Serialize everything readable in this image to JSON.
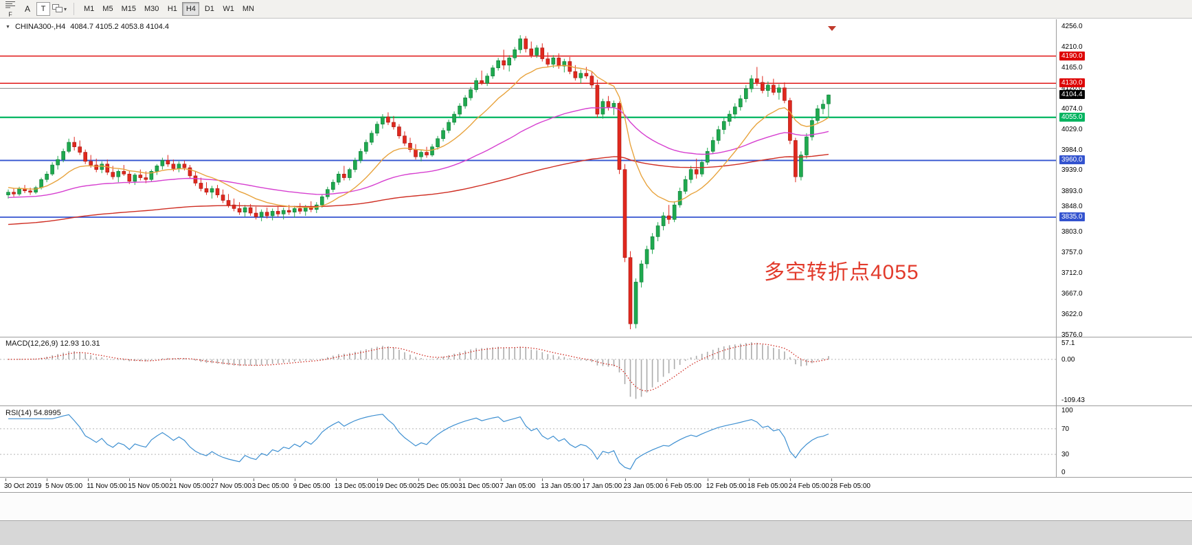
{
  "toolbar": {
    "f_badge": "F",
    "buttons": {
      "annotate": "A",
      "text": "T"
    },
    "timeframes": [
      "M1",
      "M5",
      "M15",
      "M30",
      "H1",
      "H4",
      "D1",
      "W1",
      "MN"
    ],
    "active_timeframe": "H4"
  },
  "chart": {
    "symbol": "CHINA300-,H4",
    "ohlc_text": "4084.7 4105.2 4053.8 4104.4",
    "annotation": {
      "text": "多空转折点4055",
      "color": "#e23b2c"
    },
    "colors": {
      "up": "#1fa94f",
      "up_stroke": "#0e7a36",
      "down": "#e0281e",
      "down_stroke": "#a31710"
    },
    "current_price": {
      "value": 4104.4,
      "label": "4104.4",
      "bg": "#000000",
      "fg": "#ffffff"
    }
  },
  "chart_data": {
    "type": "candlestick",
    "title": "CHINA300-,H4",
    "ohlc_display": {
      "open": 4084.7,
      "high": 4105.2,
      "low": 4053.8,
      "close": 4104.4
    },
    "x_labels": [
      "30 Oct 2019",
      "5 Nov 05:00",
      "11 Nov 05:00",
      "15 Nov 05:00",
      "21 Nov 05:00",
      "27 Nov 05:00",
      "3 Dec 05:00",
      "9 Dec 05:00",
      "13 Dec 05:00",
      "19 Dec 05:00",
      "25 Dec 05:00",
      "31 Dec 05:00",
      "7 Jan 05:00",
      "13 Jan 05:00",
      "17 Jan 05:00",
      "23 Jan 05:00",
      "6 Feb 05:00",
      "12 Feb 05:00",
      "18 Feb 05:00",
      "24 Feb 05:00",
      "28 Feb 05:00"
    ],
    "y_axis": {
      "min": 3576,
      "max": 4256,
      "ticks": [
        4256.0,
        4210.0,
        4165.0,
        4120.0,
        4074.0,
        4029.0,
        3984.0,
        3939.0,
        3893.0,
        3848.0,
        3803.0,
        3757.0,
        3712.0,
        3667.0,
        3622.0,
        3576.0
      ]
    },
    "levels": [
      {
        "value": 4190.0,
        "label": "4190.0",
        "color": "#dd0000",
        "width": 1.4,
        "badge": true
      },
      {
        "value": 4130.0,
        "label": "4130.0",
        "color": "#dd0000",
        "width": 1.4,
        "badge": true
      },
      {
        "value": 4119.0,
        "label": "",
        "color": "#8c8c8c",
        "width": 1,
        "badge": false
      },
      {
        "value": 4055.0,
        "label": "4055.0",
        "color": "#00b45f",
        "width": 2.2,
        "badge": true
      },
      {
        "value": 3960.0,
        "label": "3960.0",
        "color": "#3353cf",
        "width": 1.8,
        "badge": true
      },
      {
        "value": 3835.0,
        "label": "3835.0",
        "color": "#3353cf",
        "width": 1.8,
        "badge": true
      }
    ],
    "moving_averages": [
      {
        "name": "long-ma",
        "color": "#cf2d22"
      },
      {
        "name": "mid-ma",
        "color": "#d63fd0"
      },
      {
        "name": "fast-ma",
        "color": "#e8a33d"
      }
    ],
    "candles": [
      [
        3884,
        3896,
        3876,
        3890
      ],
      [
        3890,
        3898,
        3880,
        3886
      ],
      [
        3886,
        3902,
        3882,
        3898
      ],
      [
        3898,
        3906,
        3888,
        3893
      ],
      [
        3893,
        3900,
        3884,
        3890
      ],
      [
        3890,
        3904,
        3886,
        3900
      ],
      [
        3900,
        3922,
        3896,
        3918
      ],
      [
        3918,
        3936,
        3912,
        3930
      ],
      [
        3930,
        3956,
        3926,
        3950
      ],
      [
        3950,
        3970,
        3940,
        3962
      ],
      [
        3962,
        3986,
        3956,
        3980
      ],
      [
        3980,
        4008,
        3976,
        4000
      ],
      [
        4000,
        4012,
        3982,
        3990
      ],
      [
        3990,
        4004,
        3972,
        3978
      ],
      [
        3978,
        3984,
        3952,
        3958
      ],
      [
        3958,
        3972,
        3944,
        3950
      ],
      [
        3950,
        3964,
        3934,
        3940
      ],
      [
        3940,
        3958,
        3932,
        3952
      ],
      [
        3952,
        3962,
        3928,
        3934
      ],
      [
        3934,
        3948,
        3918,
        3924
      ],
      [
        3924,
        3940,
        3912,
        3936
      ],
      [
        3936,
        3950,
        3926,
        3930
      ],
      [
        3930,
        3938,
        3908,
        3914
      ],
      [
        3914,
        3932,
        3906,
        3928
      ],
      [
        3928,
        3940,
        3916,
        3922
      ],
      [
        3922,
        3936,
        3910,
        3918
      ],
      [
        3918,
        3940,
        3914,
        3936
      ],
      [
        3936,
        3952,
        3928,
        3948
      ],
      [
        3948,
        3966,
        3940,
        3960
      ],
      [
        3960,
        3972,
        3946,
        3952
      ],
      [
        3952,
        3962,
        3936,
        3942
      ],
      [
        3942,
        3958,
        3934,
        3952
      ],
      [
        3952,
        3960,
        3938,
        3944
      ],
      [
        3944,
        3950,
        3920,
        3926
      ],
      [
        3926,
        3936,
        3904,
        3910
      ],
      [
        3910,
        3922,
        3892,
        3898
      ],
      [
        3898,
        3912,
        3884,
        3890
      ],
      [
        3890,
        3904,
        3876,
        3898
      ],
      [
        3898,
        3906,
        3878,
        3884
      ],
      [
        3884,
        3896,
        3866,
        3872
      ],
      [
        3872,
        3886,
        3856,
        3862
      ],
      [
        3862,
        3876,
        3848,
        3854
      ],
      [
        3854,
        3868,
        3840,
        3846
      ],
      [
        3846,
        3862,
        3836,
        3856
      ],
      [
        3856,
        3864,
        3838,
        3844
      ],
      [
        3844,
        3858,
        3830,
        3836
      ],
      [
        3836,
        3852,
        3826,
        3846
      ],
      [
        3846,
        3856,
        3832,
        3838
      ],
      [
        3838,
        3854,
        3828,
        3848
      ],
      [
        3848,
        3860,
        3836,
        3842
      ],
      [
        3842,
        3856,
        3830,
        3850
      ],
      [
        3850,
        3862,
        3840,
        3846
      ],
      [
        3846,
        3860,
        3834,
        3854
      ],
      [
        3854,
        3866,
        3842,
        3848
      ],
      [
        3848,
        3862,
        3838,
        3858
      ],
      [
        3858,
        3870,
        3846,
        3852
      ],
      [
        3852,
        3868,
        3844,
        3862
      ],
      [
        3862,
        3884,
        3856,
        3880
      ],
      [
        3880,
        3902,
        3874,
        3896
      ],
      [
        3896,
        3918,
        3890,
        3912
      ],
      [
        3912,
        3936,
        3906,
        3930
      ],
      [
        3930,
        3948,
        3916,
        3922
      ],
      [
        3922,
        3944,
        3916,
        3940
      ],
      [
        3940,
        3966,
        3934,
        3960
      ],
      [
        3960,
        3986,
        3954,
        3980
      ],
      [
        3980,
        4006,
        3974,
        4000
      ],
      [
        4000,
        4026,
        3994,
        4020
      ],
      [
        4020,
        4046,
        4014,
        4040
      ],
      [
        4040,
        4062,
        4030,
        4056
      ],
      [
        4056,
        4066,
        4038,
        4044
      ],
      [
        4044,
        4058,
        4028,
        4034
      ],
      [
        4034,
        4040,
        4008,
        4014
      ],
      [
        4014,
        4024,
        3992,
        3998
      ],
      [
        3998,
        4010,
        3978,
        3984
      ],
      [
        3984,
        3996,
        3962,
        3968
      ],
      [
        3968,
        3984,
        3958,
        3978
      ],
      [
        3978,
        3990,
        3966,
        3972
      ],
      [
        3972,
        3996,
        3968,
        3990
      ],
      [
        3990,
        4014,
        3984,
        4008
      ],
      [
        4008,
        4032,
        4002,
        4026
      ],
      [
        4026,
        4050,
        4020,
        4044
      ],
      [
        4044,
        4068,
        4038,
        4062
      ],
      [
        4062,
        4086,
        4056,
        4080
      ],
      [
        4080,
        4104,
        4074,
        4098
      ],
      [
        4098,
        4122,
        4092,
        4116
      ],
      [
        4116,
        4142,
        4110,
        4136
      ],
      [
        4136,
        4158,
        4126,
        4130
      ],
      [
        4130,
        4152,
        4124,
        4146
      ],
      [
        4146,
        4170,
        4140,
        4164
      ],
      [
        4164,
        4186,
        4158,
        4180
      ],
      [
        4180,
        4204,
        4160,
        4170
      ],
      [
        4170,
        4192,
        4156,
        4186
      ],
      [
        4186,
        4210,
        4180,
        4204
      ],
      [
        4204,
        4236,
        4196,
        4228
      ],
      [
        4228,
        4234,
        4198,
        4206
      ],
      [
        4206,
        4222,
        4186,
        4192
      ],
      [
        4192,
        4214,
        4186,
        4208
      ],
      [
        4208,
        4218,
        4178,
        4184
      ],
      [
        4184,
        4198,
        4166,
        4172
      ],
      [
        4172,
        4192,
        4164,
        4186
      ],
      [
        4186,
        4196,
        4162,
        4168
      ],
      [
        4168,
        4184,
        4154,
        4178
      ],
      [
        4178,
        4188,
        4150,
        4156
      ],
      [
        4156,
        4170,
        4136,
        4142
      ],
      [
        4142,
        4160,
        4130,
        4152
      ],
      [
        4152,
        4166,
        4140,
        4146
      ],
      [
        4146,
        4156,
        4120,
        4126
      ],
      [
        4126,
        4138,
        4054,
        4062
      ],
      [
        4062,
        4096,
        4052,
        4090
      ],
      [
        4090,
        4102,
        4070,
        4078
      ],
      [
        4078,
        4092,
        4060,
        4086
      ],
      [
        4086,
        4090,
        3930,
        3940
      ],
      [
        3940,
        3952,
        3736,
        3746
      ],
      [
        3746,
        3760,
        3588,
        3600
      ],
      [
        3600,
        3700,
        3590,
        3692
      ],
      [
        3692,
        3740,
        3680,
        3732
      ],
      [
        3732,
        3772,
        3722,
        3764
      ],
      [
        3764,
        3800,
        3754,
        3792
      ],
      [
        3792,
        3824,
        3782,
        3816
      ],
      [
        3816,
        3846,
        3806,
        3838
      ],
      [
        3838,
        3862,
        3820,
        3830
      ],
      [
        3830,
        3870,
        3824,
        3862
      ],
      [
        3862,
        3900,
        3856,
        3892
      ],
      [
        3892,
        3926,
        3886,
        3918
      ],
      [
        3918,
        3948,
        3910,
        3940
      ],
      [
        3940,
        3964,
        3920,
        3930
      ],
      [
        3930,
        3962,
        3924,
        3956
      ],
      [
        3956,
        3988,
        3950,
        3980
      ],
      [
        3980,
        4012,
        3974,
        4004
      ],
      [
        4004,
        4036,
        3996,
        4028
      ],
      [
        4028,
        4054,
        4018,
        4046
      ],
      [
        4046,
        4070,
        4036,
        4062
      ],
      [
        4062,
        4086,
        4052,
        4078
      ],
      [
        4078,
        4104,
        4070,
        4096
      ],
      [
        4096,
        4126,
        4088,
        4118
      ],
      [
        4118,
        4148,
        4110,
        4140
      ],
      [
        4140,
        4166,
        4124,
        4132
      ],
      [
        4132,
        4146,
        4108,
        4114
      ],
      [
        4114,
        4134,
        4100,
        4126
      ],
      [
        4126,
        4140,
        4104,
        4110
      ],
      [
        4110,
        4128,
        4094,
        4120
      ],
      [
        4120,
        4132,
        4086,
        4092
      ],
      [
        4092,
        4098,
        3996,
        4004
      ],
      [
        4004,
        4010,
        3912,
        3924
      ],
      [
        3924,
        3980,
        3916,
        3972
      ],
      [
        3972,
        4020,
        3964,
        4012
      ],
      [
        4012,
        4056,
        4004,
        4048
      ],
      [
        4048,
        4082,
        4040,
        4074
      ],
      [
        4074,
        4094,
        4062,
        4084
      ],
      [
        4084.7,
        4105.2,
        4053.8,
        4104.4
      ]
    ],
    "macd": {
      "label": "MACD(12,26,9) 12.93 10.31",
      "axis_max_label": "57.1",
      "axis_zero_label": "0.00",
      "axis_min_label": "-109.43",
      "histogram_color": "#ababab",
      "signal_color": "#cf271d"
    },
    "rsi": {
      "label": "RSI(14) 54.8995",
      "line_color": "#3d8fd1",
      "axis_labels": [
        "100",
        "70",
        "30",
        "0"
      ],
      "axis_values": [
        100,
        70,
        30,
        0
      ],
      "guide_levels": [
        70,
        30
      ]
    }
  }
}
